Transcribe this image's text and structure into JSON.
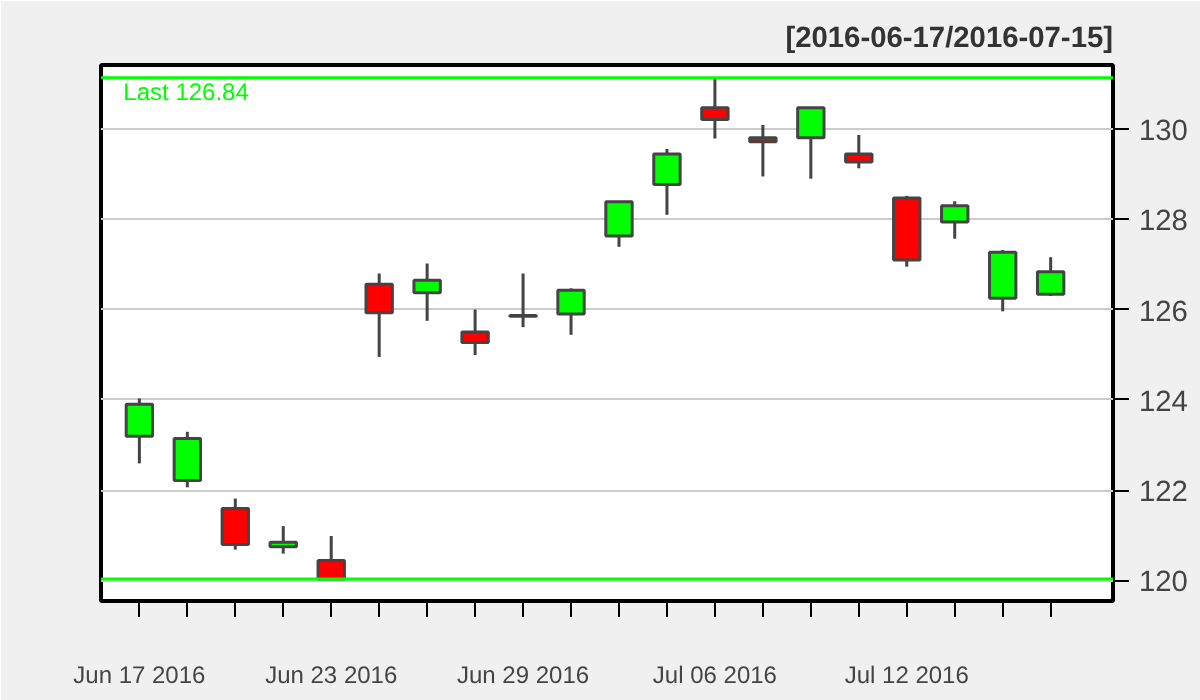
{
  "chart_data": {
    "type": "candlestick",
    "title": "[2016-06-17/2016-07-15]",
    "categories": [
      "Jun 17 2016",
      null,
      null,
      null,
      "Jun 23 2016",
      null,
      null,
      null,
      "Jun 29 2016",
      null,
      null,
      null,
      "Jul 06 2016",
      null,
      null,
      null,
      "Jul 12 2016",
      null,
      null,
      null
    ],
    "ohlc": [
      [
        123.19,
        124.03,
        122.59,
        123.9
      ],
      [
        122.21,
        123.29,
        122.06,
        123.14
      ],
      [
        121.59,
        121.81,
        120.68,
        120.79
      ],
      [
        120.74,
        121.2,
        120.59,
        120.84
      ],
      [
        120.44,
        120.98,
        120.03,
        120.03
      ],
      [
        126.56,
        126.8,
        124.95,
        125.93
      ],
      [
        126.37,
        127.02,
        125.75,
        126.65
      ],
      [
        125.5,
        126.0,
        124.99,
        125.27
      ],
      [
        125.87,
        126.8,
        125.61,
        125.85
      ],
      [
        125.9,
        126.47,
        125.44,
        126.43
      ],
      [
        127.63,
        128.39,
        127.39,
        128.39
      ],
      [
        128.77,
        129.56,
        128.1,
        129.45
      ],
      [
        130.47,
        131.14,
        129.79,
        130.21
      ],
      [
        129.81,
        130.09,
        128.95,
        129.72
      ],
      [
        129.81,
        130.47,
        128.9,
        130.47
      ],
      [
        129.45,
        129.87,
        129.13,
        129.27
      ],
      [
        128.47,
        128.52,
        126.95,
        127.1
      ],
      [
        127.94,
        128.4,
        127.57,
        128.3
      ],
      [
        126.25,
        127.32,
        125.96,
        127.27
      ],
      [
        126.34,
        127.16,
        126.3,
        126.84
      ]
    ],
    "colors": [
      "#00ff00",
      "#00ff00",
      "#ff0000",
      "#00ff00",
      "#ff0000",
      "#ff0000",
      "#00ff00",
      "#ff0000",
      "#444444",
      "#00ff00",
      "#00ff00",
      "#00ff00",
      "#ff0000",
      "#ff0000",
      "#00ff00",
      "#ff0000",
      "#ff0000",
      "#00ff00",
      "#00ff00",
      "#00ff00"
    ],
    "ylim": [
      119.54,
      131.42
    ],
    "yticks": [
      120,
      122,
      124,
      126,
      128,
      130
    ],
    "grid": "y",
    "ref_lines": [
      {
        "axis": "y",
        "value": 131.14,
        "label": "Last 126.84",
        "color": "#00ff00"
      },
      {
        "axis": "y",
        "value": 120.03,
        "color": "#00ff00"
      }
    ]
  }
}
